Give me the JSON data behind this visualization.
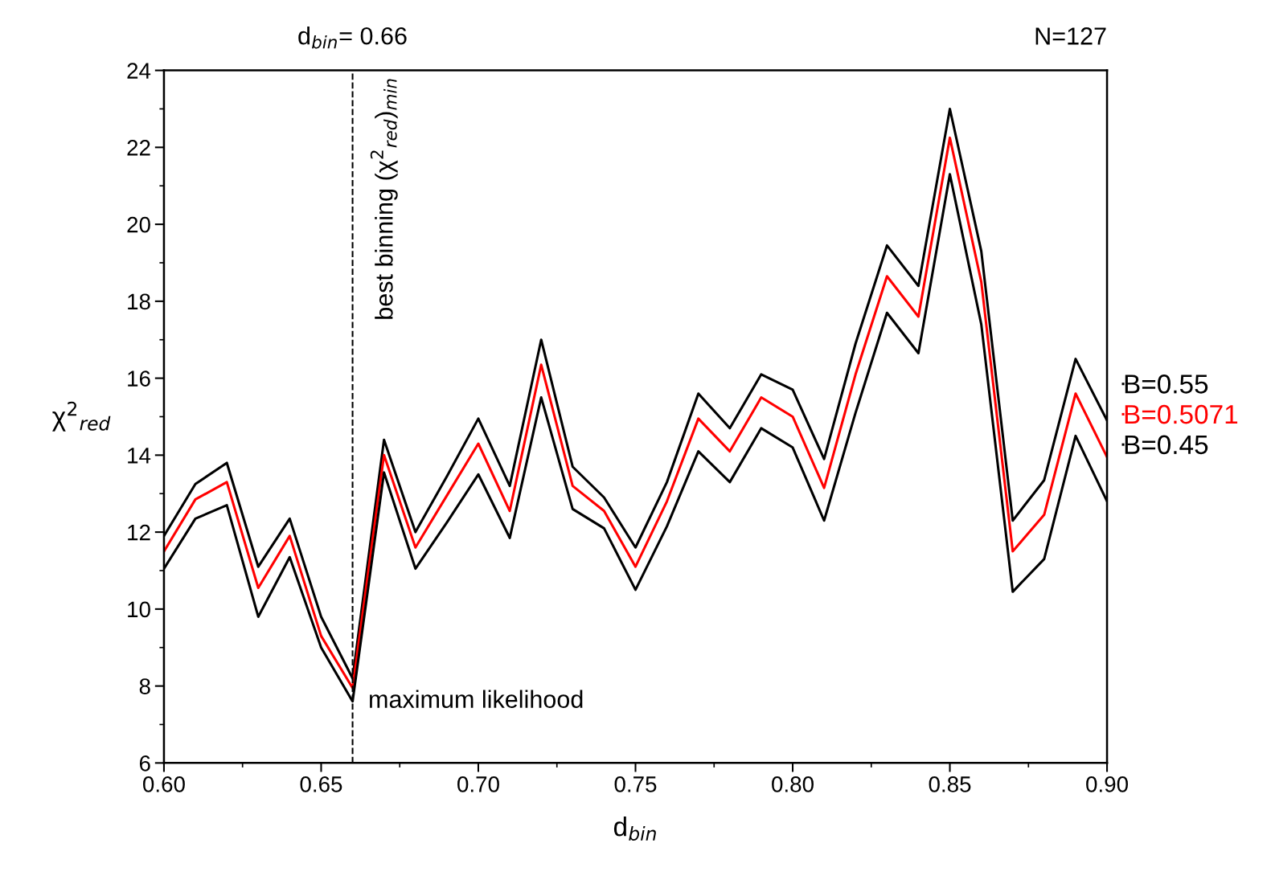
{
  "chart_data": {
    "type": "line",
    "xlabel": "d$_{bin}$",
    "ylabel": "χ$^{2}$$_{red}$",
    "x": [
      0.6,
      0.61,
      0.62,
      0.63,
      0.64,
      0.65,
      0.66,
      0.67,
      0.68,
      0.69,
      0.7,
      0.71,
      0.72,
      0.73,
      0.74,
      0.75,
      0.76,
      0.77,
      0.78,
      0.79,
      0.8,
      0.81,
      0.82,
      0.83,
      0.84,
      0.85,
      0.86,
      0.87,
      0.88,
      0.89,
      0.9
    ],
    "series": [
      {
        "name": "B=0.55",
        "color": "#000000",
        "values": [
          11.9,
          13.25,
          13.8,
          11.1,
          12.35,
          9.8,
          8.2,
          14.4,
          12.0,
          13.45,
          14.95,
          13.2,
          17.0,
          13.7,
          12.9,
          11.6,
          13.3,
          15.6,
          14.7,
          16.1,
          15.7,
          13.9,
          16.9,
          19.45,
          18.4,
          23.0,
          19.3,
          12.3,
          13.35,
          16.5,
          14.9
        ]
      },
      {
        "name": "B=0.5071",
        "color": "#ff0000",
        "values": [
          11.5,
          12.85,
          13.3,
          10.55,
          11.9,
          9.3,
          7.95,
          14.0,
          11.6,
          12.95,
          14.3,
          12.55,
          16.35,
          13.2,
          12.55,
          11.1,
          12.8,
          14.95,
          14.1,
          15.5,
          15.0,
          13.15,
          16.1,
          18.65,
          17.6,
          22.25,
          18.5,
          11.5,
          12.45,
          15.6,
          13.95
        ]
      },
      {
        "name": "B=0.45",
        "color": "#000000",
        "values": [
          11.05,
          12.35,
          12.7,
          9.8,
          11.35,
          9.0,
          7.6,
          13.55,
          11.05,
          12.25,
          13.5,
          11.85,
          15.5,
          12.6,
          12.1,
          10.5,
          12.15,
          14.1,
          13.3,
          14.7,
          14.2,
          12.3,
          15.1,
          17.7,
          16.65,
          21.3,
          17.4,
          10.45,
          11.3,
          14.5,
          12.8
        ]
      }
    ],
    "xlim": [
      0.6,
      0.9
    ],
    "xticks": [
      {
        "value": 0.6,
        "label": "0.60"
      },
      {
        "value": 0.65,
        "label": "0.65"
      },
      {
        "value": 0.7,
        "label": "0.70"
      },
      {
        "value": 0.75,
        "label": "0.75"
      },
      {
        "value": 0.8,
        "label": "0.80"
      },
      {
        "value": 0.85,
        "label": "0.85"
      },
      {
        "value": 0.9,
        "label": "0.90"
      }
    ],
    "ylim": [
      6,
      24
    ],
    "yticks": [
      6,
      8,
      10,
      12,
      14,
      16,
      18,
      20,
      22,
      24
    ],
    "ref_lines": [
      {
        "axis": "x",
        "value": 0.66,
        "label": "d$_{bin}$= 0.66",
        "color": "#000000",
        "line_style": "dashed"
      }
    ],
    "annotations": [
      "N=127",
      {
        "text": "best binning (χ$^{2}$$_{red}$)$_{min}$",
        "x": 0.66,
        "y": 24
      },
      {
        "text": "maximum likelihood",
        "x": 0.66,
        "y": 7.6
      }
    ],
    "legend": "right",
    "grid": false,
    "marker": "none",
    "line_style": "solid"
  }
}
